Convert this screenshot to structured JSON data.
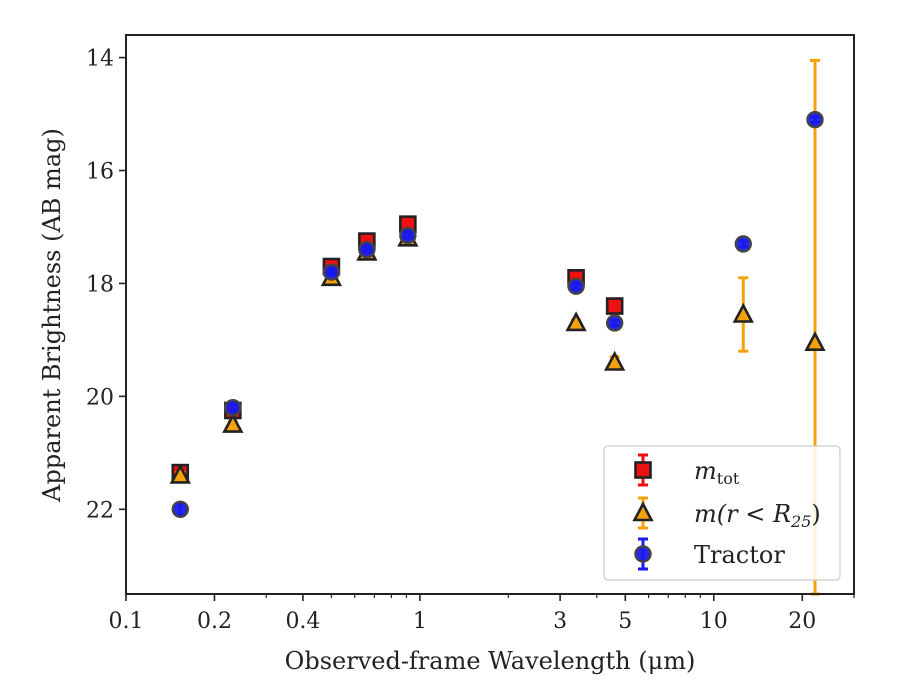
{
  "chart_data": {
    "type": "scatter",
    "title": "",
    "xlabel": "Observed-frame Wavelength (μm)",
    "ylabel": "Apparent Brightness (AB mag)",
    "xscale": "log",
    "xlim": [
      0.1,
      30
    ],
    "ylim": [
      23.5,
      13.6
    ],
    "y_inverted": true,
    "grid": false,
    "legend_position": "bottom-right",
    "x_ticks_major": [
      {
        "value": 0.1,
        "label": "0.1"
      },
      {
        "value": 0.2,
        "label": "0.2"
      },
      {
        "value": 0.4,
        "label": "0.4"
      },
      {
        "value": 1,
        "label": "1"
      },
      {
        "value": 3,
        "label": "3"
      },
      {
        "value": 5,
        "label": "5"
      },
      {
        "value": 10,
        "label": "10"
      },
      {
        "value": 20,
        "label": "20"
      }
    ],
    "x_ticks_minor": [
      0.3,
      0.5,
      0.6,
      0.7,
      0.8,
      0.9,
      2,
      4,
      6,
      7,
      8,
      9,
      30
    ],
    "y_ticks": [
      {
        "value": 14,
        "label": "14"
      },
      {
        "value": 16,
        "label": "16"
      },
      {
        "value": 18,
        "label": "18"
      },
      {
        "value": 20,
        "label": "20"
      },
      {
        "value": 22,
        "label": "22"
      }
    ],
    "series": [
      {
        "name": "m_tot",
        "legend_main": "m",
        "legend_sub": "tot",
        "marker": "square",
        "color": "#ee1111",
        "edge": "#222222",
        "points": [
          {
            "x": 0.153,
            "y": 21.35,
            "err": 0.1
          },
          {
            "x": 0.231,
            "y": 20.25,
            "err": 0.05
          },
          {
            "x": 0.5,
            "y": 17.7,
            "err": 0.05
          },
          {
            "x": 0.66,
            "y": 17.25,
            "err": 0.05
          },
          {
            "x": 0.91,
            "y": 16.95,
            "err": 0.05
          },
          {
            "x": 3.4,
            "y": 17.9,
            "err": 0.05
          },
          {
            "x": 4.6,
            "y": 18.4,
            "err": 0.05
          }
        ]
      },
      {
        "name": "m(r<R25)",
        "legend_main": "m(r < R",
        "legend_sub": "25",
        "legend_close": ")",
        "marker": "triangle",
        "color": "#f5a20a",
        "edge": "#222222",
        "points": [
          {
            "x": 0.153,
            "y": 21.4,
            "err": 0.05
          },
          {
            "x": 0.231,
            "y": 20.5,
            "err": 0.05
          },
          {
            "x": 0.5,
            "y": 17.9,
            "err": 0.05
          },
          {
            "x": 0.66,
            "y": 17.45,
            "err": 0.05
          },
          {
            "x": 0.91,
            "y": 17.2,
            "err": 0.05
          },
          {
            "x": 3.4,
            "y": 18.7,
            "err": 0.05
          },
          {
            "x": 4.6,
            "y": 19.4,
            "err": 0.1
          },
          {
            "x": 12.6,
            "y": 18.55,
            "err": 0.65
          },
          {
            "x": 22.1,
            "y": 19.05,
            "err": 5.0
          }
        ]
      },
      {
        "name": "Tractor",
        "legend_main": "Tractor",
        "marker": "circle",
        "color": "#1a1aee",
        "edge": "#444444",
        "points": [
          {
            "x": 0.153,
            "y": 22.0,
            "err": 0.1
          },
          {
            "x": 0.231,
            "y": 20.2,
            "err": 0.05
          },
          {
            "x": 0.5,
            "y": 17.8,
            "err": 0.05
          },
          {
            "x": 0.66,
            "y": 17.4,
            "err": 0.05
          },
          {
            "x": 0.91,
            "y": 17.15,
            "err": 0.05
          },
          {
            "x": 3.4,
            "y": 18.05,
            "err": 0.05
          },
          {
            "x": 4.6,
            "y": 18.7,
            "err": 0.05
          },
          {
            "x": 12.6,
            "y": 17.3,
            "err": 0.05
          },
          {
            "x": 22.1,
            "y": 15.1,
            "err": 0.05
          }
        ]
      }
    ]
  }
}
